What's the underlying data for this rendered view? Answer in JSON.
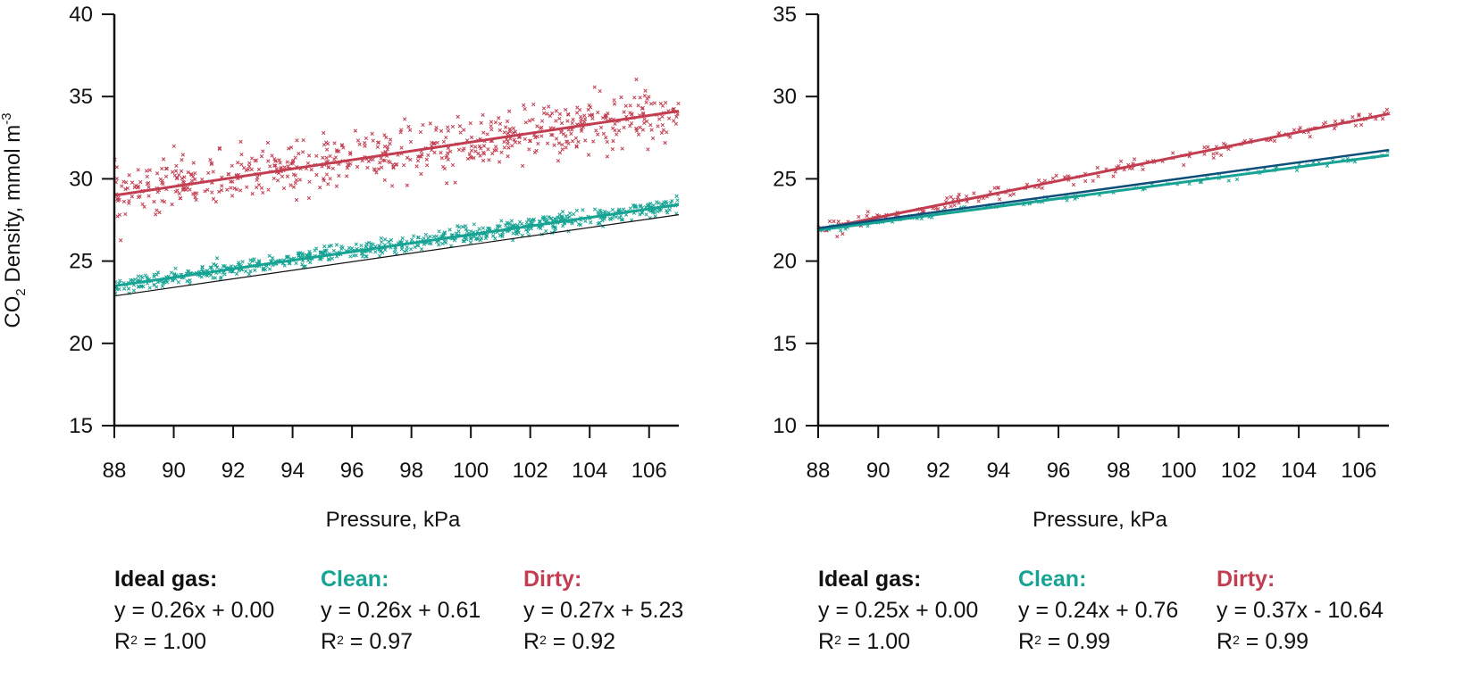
{
  "colors": {
    "ideal": "#111111",
    "clean": "#16a394",
    "dirty": "#c23d50",
    "ideal_right": "#0e4f7a"
  },
  "chart_data": [
    {
      "type": "scatter",
      "xlabel": "Pressure, kPa",
      "ylabel_parts": [
        "CO",
        "2",
        " Density, mmol m",
        "-3"
      ],
      "xlim": [
        88,
        107
      ],
      "ylim": [
        15,
        40
      ],
      "xticks": [
        "88",
        "90",
        "92",
        "94",
        "96",
        "98",
        "100",
        "102",
        "104",
        "106"
      ],
      "yticks": [
        "15",
        "20",
        "25",
        "30",
        "35",
        "40"
      ],
      "series": [
        {
          "key": "dirty",
          "style": "scatter-with-fit",
          "slope": 0.27,
          "intercept": 5.23,
          "noise": 0.8,
          "count": 650
        },
        {
          "key": "clean",
          "style": "scatter-with-fit",
          "slope": 0.26,
          "intercept": 0.61,
          "noise": 0.25,
          "count": 700
        },
        {
          "key": "ideal",
          "style": "line",
          "slope": 0.26,
          "intercept": 0.0
        }
      ],
      "fits": [
        {
          "name": "Ideal gas:",
          "equation": "y = 0.26x + 0.00",
          "r2_prefix": "R",
          "r2_exp": "2",
          "r2_value": " = 1.00"
        },
        {
          "name": "Clean:",
          "equation": "y = 0.26x + 0.61",
          "r2_prefix": "R",
          "r2_exp": "2",
          "r2_value": " = 0.97"
        },
        {
          "name": "Dirty:",
          "equation": "y = 0.27x + 5.23",
          "r2_prefix": "R",
          "r2_exp": "2",
          "r2_value": " = 0.92"
        }
      ]
    },
    {
      "type": "scatter",
      "xlabel": "Pressure, kPa",
      "ylabel_parts": [],
      "xlim": [
        88,
        107
      ],
      "ylim": [
        10,
        35
      ],
      "xticks": [
        "88",
        "90",
        "92",
        "94",
        "96",
        "98",
        "100",
        "102",
        "104",
        "106"
      ],
      "yticks": [
        "10",
        "15",
        "20",
        "25",
        "30",
        "35"
      ],
      "series": [
        {
          "key": "dirty",
          "style": "scatter-with-fit",
          "slope": 0.37,
          "intercept": -10.64,
          "noise": 0.2,
          "count": 180
        },
        {
          "key": "clean",
          "style": "scatter-with-fit",
          "slope": 0.24,
          "intercept": 0.76,
          "noise": 0.12,
          "count": 90
        },
        {
          "key": "ideal",
          "style": "line",
          "slope": 0.25,
          "intercept": 0.0
        }
      ],
      "fits": [
        {
          "name": "Ideal gas:",
          "equation": "y = 0.25x + 0.00",
          "r2_prefix": "R",
          "r2_exp": "2",
          "r2_value": " = 1.00"
        },
        {
          "name": "Clean:",
          "equation": "y = 0.24x + 0.76",
          "r2_prefix": "R",
          "r2_exp": "2",
          "r2_value": " = 0.99"
        },
        {
          "name": "Dirty:",
          "equation": "y = 0.37x - 10.64",
          "r2_prefix": "R",
          "r2_exp": "2",
          "r2_value": " = 0.99"
        }
      ]
    }
  ]
}
